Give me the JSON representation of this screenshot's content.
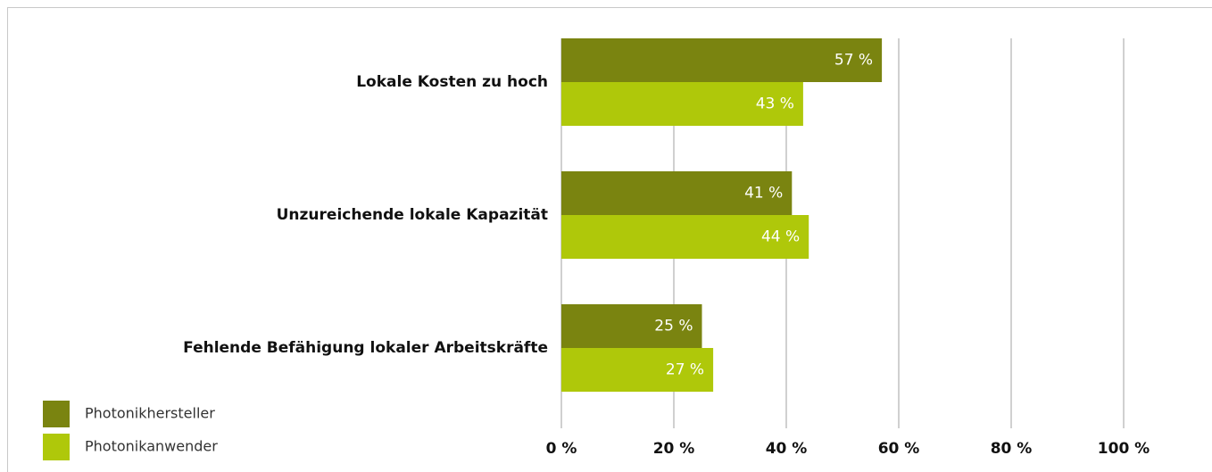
{
  "chart_data": {
    "type": "barh",
    "categories": [
      "Lokale Kosten zu hoch",
      "Unzureichende lokale Kapazität",
      "Fehlende Befähigung lokaler Arbeitskräfte"
    ],
    "series": [
      {
        "name": "Photonikhersteller",
        "color": "#7a8410",
        "values": [
          57,
          41,
          25
        ],
        "value_labels": [
          "57 %",
          "41 %",
          "25 %"
        ]
      },
      {
        "name": "Photonikanwender",
        "color": "#afc80a",
        "values": [
          43,
          44,
          27
        ],
        "value_labels": [
          "43 %",
          "44 %",
          "27 %"
        ]
      }
    ],
    "xlim": [
      0,
      100
    ],
    "xticks": [
      {
        "value": 0,
        "label": "0 %"
      },
      {
        "value": 20,
        "label": "20 %"
      },
      {
        "value": 40,
        "label": "40 %"
      },
      {
        "value": 60,
        "label": "60 %"
      },
      {
        "value": 80,
        "label": "80 %"
      },
      {
        "value": 100,
        "label": "100 %"
      }
    ],
    "grid": true,
    "legend": "bottom-left"
  }
}
